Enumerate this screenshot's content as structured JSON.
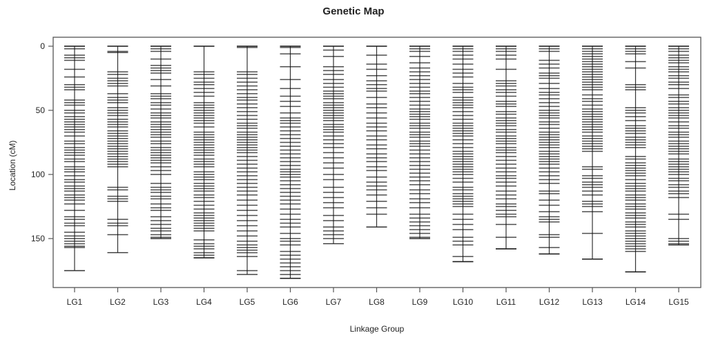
{
  "chart_data": {
    "type": "genetic-map",
    "title": "Genetic Map",
    "xlabel": "Linkage Group",
    "ylabel": "Location (cM)",
    "ylim": [
      0,
      190
    ],
    "y_reversed": true,
    "yticks": [
      0,
      50,
      100,
      150
    ],
    "grid": false,
    "colors": {
      "marker": "#111111",
      "axis": "#555555"
    },
    "groups": [
      {
        "name": "LG1",
        "length": 175,
        "markers": [
          0,
          2,
          7,
          9,
          11,
          18,
          24,
          30,
          32,
          34,
          42,
          44,
          46,
          50,
          52,
          55,
          57,
          59,
          61,
          63,
          65,
          67,
          70,
          74,
          76,
          79,
          81,
          83,
          85,
          88,
          90,
          94,
          96,
          98,
          101,
          104,
          106,
          109,
          111,
          113,
          116,
          118,
          120,
          123,
          128,
          133,
          135,
          138,
          140,
          145,
          148,
          150,
          152,
          154,
          156,
          157
        ]
      },
      {
        "name": "LG2",
        "length": 161,
        "markers": [
          0,
          4,
          5,
          20,
          22,
          25,
          27,
          29,
          31,
          37,
          40,
          42,
          44,
          48,
          50,
          52,
          54,
          57,
          59,
          61,
          63,
          66,
          68,
          70,
          72,
          74,
          76,
          78,
          80,
          82,
          84,
          86,
          88,
          90,
          92,
          94,
          110,
          112,
          117,
          119,
          121,
          135,
          138,
          140,
          147
        ]
      },
      {
        "name": "LG3",
        "length": 150,
        "markers": [
          0,
          2,
          4,
          10,
          15,
          17,
          19,
          21,
          26,
          31,
          37,
          39,
          41,
          44,
          46,
          49,
          52,
          54,
          56,
          59,
          61,
          63,
          65,
          67,
          69,
          71,
          74,
          76,
          79,
          81,
          83,
          85,
          87,
          89,
          91,
          94,
          97,
          100,
          107,
          110,
          112,
          114,
          117,
          119,
          123,
          126,
          128,
          133,
          136,
          139,
          142,
          144,
          147,
          149
        ]
      },
      {
        "name": "LG4",
        "length": 165,
        "markers": [
          0,
          20,
          22,
          25,
          28,
          30,
          33,
          36,
          39,
          44,
          46,
          48,
          50,
          52,
          54,
          56,
          58,
          60,
          63,
          67,
          69,
          71,
          73,
          75,
          77,
          79,
          81,
          83,
          85,
          88,
          90,
          92,
          94,
          98,
          100,
          102,
          104,
          107,
          109,
          111,
          113,
          116,
          118,
          121,
          124,
          127,
          130,
          132,
          134,
          136,
          138,
          140,
          142,
          144,
          151,
          154,
          156,
          158,
          161,
          163,
          165
        ]
      },
      {
        "name": "LG5",
        "length": 178,
        "markers": [
          0,
          1,
          20,
          22,
          25,
          28,
          31,
          34,
          37,
          40,
          42,
          45,
          48,
          51,
          54,
          57,
          60,
          62,
          64,
          67,
          69,
          71,
          73,
          75,
          77,
          79,
          81,
          83,
          86,
          89,
          92,
          95,
          98,
          101,
          104,
          107,
          110,
          113,
          116,
          120,
          124,
          128,
          132,
          136,
          140,
          144,
          148,
          152,
          155,
          157,
          159,
          161,
          164,
          175
        ]
      },
      {
        "name": "LG6",
        "length": 181,
        "markers": [
          0,
          1,
          6,
          16,
          26,
          33,
          39,
          43,
          47,
          52,
          56,
          58,
          60,
          63,
          66,
          69,
          72,
          75,
          78,
          81,
          84,
          87,
          90,
          93,
          96,
          98,
          100,
          102,
          105,
          108,
          111,
          114,
          117,
          120,
          123,
          127,
          131,
          135,
          138,
          141,
          146,
          150,
          152,
          155,
          160,
          163,
          166,
          169,
          172,
          175,
          178,
          181
        ]
      },
      {
        "name": "LG7",
        "length": 154,
        "markers": [
          0,
          3,
          8,
          16,
          19,
          22,
          26,
          29,
          32,
          35,
          37,
          39,
          41,
          44,
          46,
          48,
          50,
          52,
          54,
          56,
          58,
          61,
          63,
          65,
          67,
          70,
          73,
          76,
          79,
          83,
          87,
          91,
          95,
          100,
          104,
          110,
          114,
          118,
          122,
          126,
          132,
          136,
          141,
          144,
          147,
          150
        ]
      },
      {
        "name": "LG8",
        "length": 141,
        "markers": [
          0,
          7,
          14,
          18,
          23,
          27,
          30,
          33,
          35,
          40,
          45,
          48,
          52,
          56,
          60,
          63,
          66,
          70,
          73,
          77,
          80,
          84,
          87,
          90,
          94,
          97,
          102,
          106,
          109,
          112,
          116,
          121,
          126,
          131
        ]
      },
      {
        "name": "LG9",
        "length": 150,
        "markers": [
          0,
          2,
          4,
          8,
          13,
          17,
          20,
          23,
          26,
          29,
          32,
          35,
          37,
          40,
          43,
          46,
          49,
          51,
          53,
          55,
          57,
          60,
          62,
          64,
          67,
          69,
          71,
          74,
          76,
          78,
          81,
          84,
          87,
          90,
          93,
          96,
          99,
          102,
          105,
          108,
          112,
          115,
          119,
          122,
          126,
          131,
          134,
          137,
          140,
          143,
          146,
          149
        ]
      },
      {
        "name": "LG10",
        "length": 168,
        "markers": [
          0,
          2,
          4,
          7,
          10,
          14,
          18,
          21,
          24,
          29,
          32,
          34,
          36,
          40,
          42,
          44,
          46,
          48,
          51,
          54,
          57,
          60,
          62,
          64,
          66,
          68,
          70,
          73,
          76,
          79,
          82,
          84,
          86,
          88,
          90,
          92,
          94,
          96,
          98,
          100,
          103,
          106,
          110,
          112,
          115,
          117,
          119,
          121,
          123,
          125,
          131,
          135,
          139,
          143,
          149,
          152,
          155,
          164,
          168
        ]
      },
      {
        "name": "LG11",
        "length": 158,
        "markers": [
          0,
          2,
          4,
          7,
          10,
          18,
          27,
          29,
          31,
          34,
          36,
          39,
          43,
          45,
          47,
          51,
          53,
          56,
          58,
          60,
          62,
          65,
          67,
          70,
          72,
          74,
          76,
          79,
          81,
          83,
          86,
          89,
          92,
          95,
          98,
          101,
          103,
          106,
          109,
          113,
          116,
          119,
          123,
          125,
          128,
          131,
          133,
          139,
          149,
          158
        ]
      },
      {
        "name": "LG12",
        "length": 162,
        "markers": [
          0,
          2,
          4,
          11,
          14,
          17,
          21,
          23,
          25,
          29,
          33,
          36,
          38,
          41,
          44,
          47,
          50,
          52,
          54,
          56,
          59,
          61,
          64,
          67,
          69,
          71,
          73,
          75,
          77,
          79,
          82,
          84,
          86,
          88,
          90,
          92,
          95,
          98,
          101,
          104,
          107,
          113,
          115,
          120,
          124,
          129,
          133,
          135,
          137,
          147,
          149,
          157,
          162
        ]
      },
      {
        "name": "LG13",
        "length": 166,
        "markers": [
          0,
          2,
          4,
          6,
          8,
          10,
          12,
          14,
          16,
          18,
          20,
          22,
          24,
          26,
          28,
          30,
          32,
          34,
          38,
          41,
          43,
          46,
          49,
          51,
          53,
          55,
          57,
          59,
          61,
          63,
          65,
          67,
          70,
          72,
          74,
          76,
          78,
          80,
          82,
          94,
          96,
          101,
          103,
          106,
          108,
          110,
          113,
          116,
          121,
          123,
          125,
          129,
          146,
          166
        ]
      },
      {
        "name": "LG14",
        "length": 176,
        "markers": [
          0,
          2,
          4,
          6,
          12,
          17,
          30,
          32,
          34,
          48,
          50,
          52,
          55,
          58,
          62,
          64,
          66,
          68,
          71,
          73,
          75,
          77,
          79,
          86,
          88,
          91,
          93,
          95,
          97,
          99,
          101,
          104,
          107,
          109,
          111,
          113,
          116,
          118,
          120,
          123,
          125,
          127,
          130,
          132,
          134,
          137,
          139,
          141,
          144,
          146,
          148,
          150,
          152,
          154,
          156,
          158,
          160,
          176
        ]
      },
      {
        "name": "LG15",
        "length": 155,
        "markers": [
          0,
          2,
          4,
          7,
          9,
          11,
          13,
          16,
          18,
          20,
          23,
          25,
          28,
          30,
          33,
          38,
          40,
          43,
          45,
          48,
          50,
          52,
          54,
          56,
          59,
          62,
          64,
          67,
          69,
          71,
          74,
          76,
          78,
          80,
          82,
          84,
          88,
          90,
          92,
          94,
          96,
          98,
          100,
          103,
          105,
          108,
          110,
          113,
          115,
          118,
          131,
          135,
          150,
          152,
          154
        ]
      }
    ]
  }
}
